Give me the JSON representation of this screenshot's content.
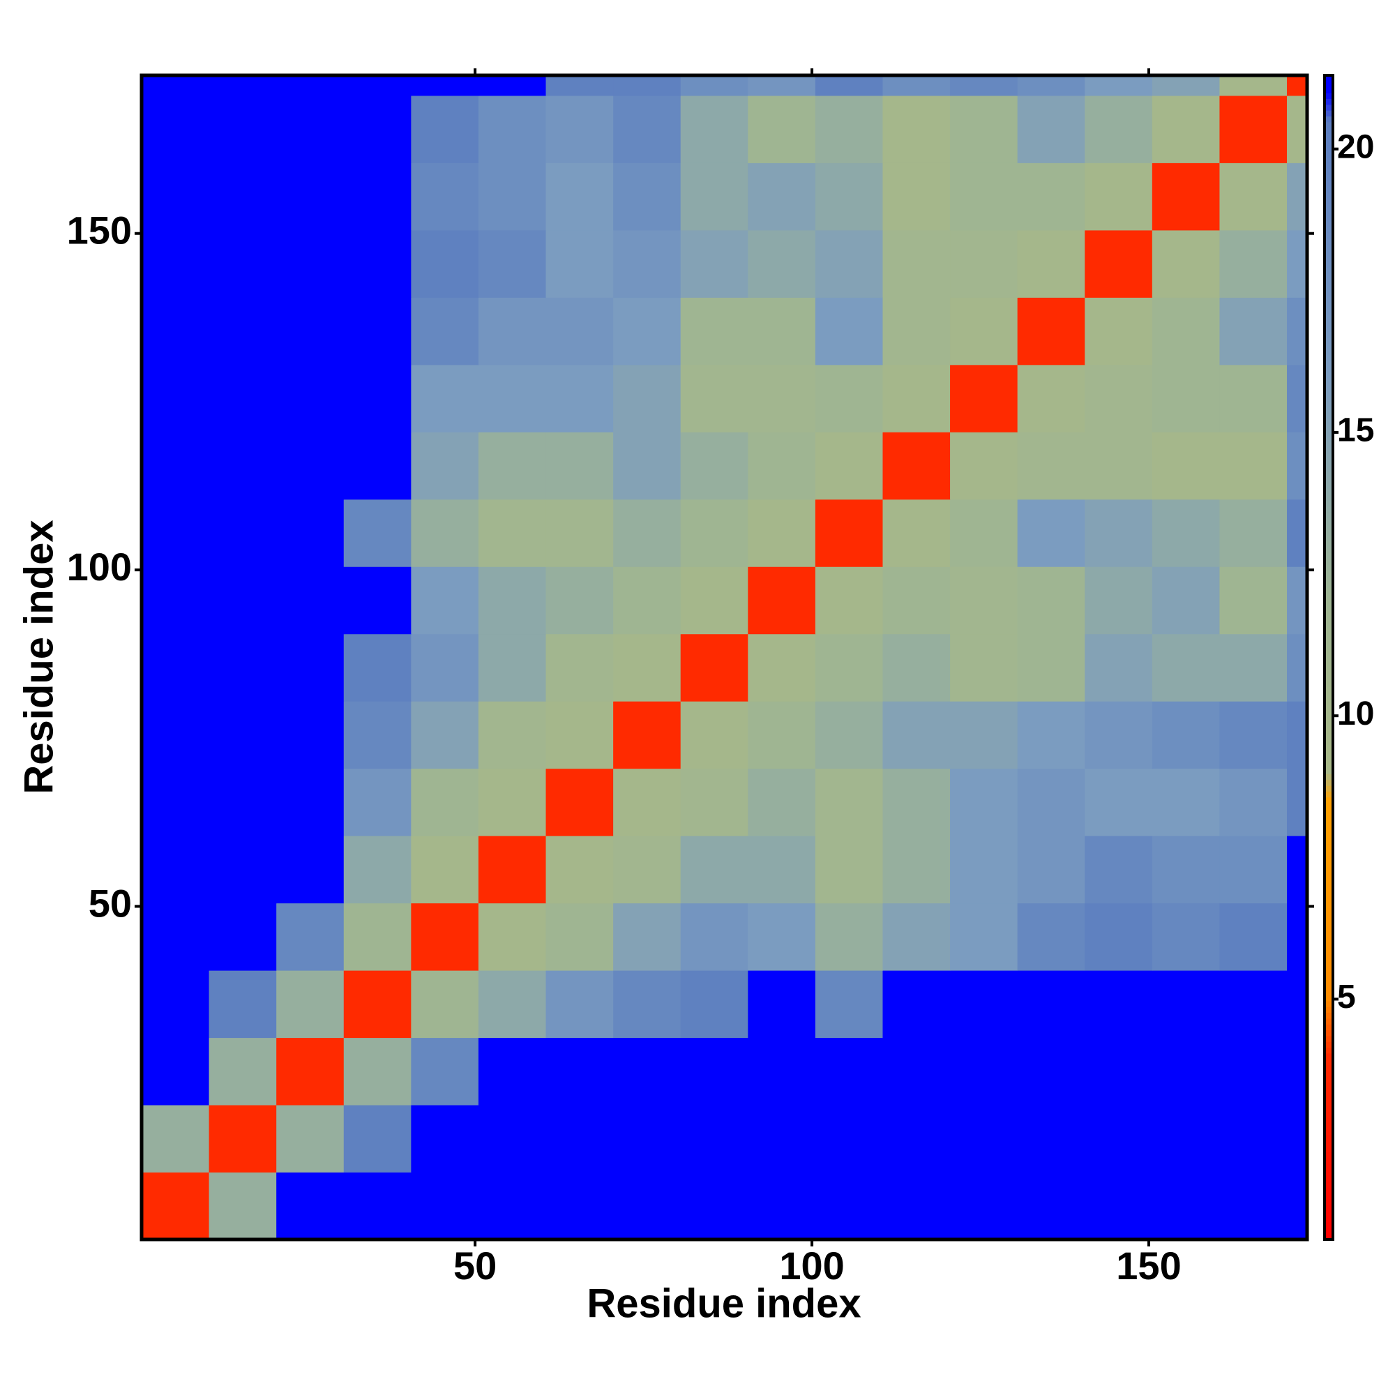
{
  "chart_data": {
    "type": "heatmap",
    "x_label": "Residue index",
    "y_label": "Residue index",
    "xlim": [
      0.5,
      173.5
    ],
    "ylim": [
      0.5,
      173.5
    ],
    "xticks": [
      50,
      100,
      150
    ],
    "yticks": [
      50,
      100,
      150
    ],
    "xbins": [
      0.5,
      10.5,
      20.5,
      30.5,
      40.5,
      50.5,
      60.5,
      70.5,
      80.5,
      90.5,
      100.5,
      110.5,
      120.5,
      130.5,
      140.5,
      150.5,
      160.5,
      170.5,
      173.5
    ],
    "ybins": [
      0.5,
      10.5,
      20.5,
      30.5,
      40.5,
      50.5,
      60.5,
      70.5,
      80.5,
      90.5,
      100.5,
      110.5,
      120.5,
      130.5,
      140.5,
      150.5,
      160.5,
      170.5,
      173.5
    ],
    "z": [
      [
        4,
        13,
        21,
        21,
        21,
        21,
        21,
        21,
        21,
        21,
        21,
        21,
        21,
        21,
        21,
        21,
        21,
        21
      ],
      [
        13,
        4,
        13,
        20,
        21,
        21,
        21,
        21,
        21,
        21,
        21,
        21,
        21,
        21,
        21,
        21,
        21,
        21
      ],
      [
        21,
        13,
        4,
        13,
        19,
        21,
        21,
        21,
        21,
        21,
        21,
        21,
        21,
        21,
        21,
        21,
        21,
        21
      ],
      [
        21,
        20,
        13,
        4,
        12,
        14,
        17,
        19,
        20,
        21,
        19,
        21,
        21,
        21,
        21,
        21,
        21,
        21
      ],
      [
        21,
        21,
        19,
        12,
        4,
        10,
        12,
        15,
        17,
        16,
        13,
        15,
        16,
        19,
        20,
        19,
        20,
        21
      ],
      [
        21,
        21,
        21,
        14,
        10,
        4,
        10,
        11,
        14,
        14,
        11,
        13,
        16,
        17,
        19,
        18,
        18,
        21
      ],
      [
        21,
        21,
        21,
        17,
        12,
        10,
        4,
        10,
        11,
        13,
        11,
        13,
        16,
        17,
        16,
        16,
        17,
        20
      ],
      [
        21,
        21,
        21,
        19,
        15,
        11,
        10,
        4,
        10,
        12,
        13,
        15,
        15,
        16,
        17,
        18,
        19,
        20
      ],
      [
        21,
        21,
        21,
        20,
        17,
        14,
        11,
        10,
        4,
        10,
        12,
        13,
        11,
        12,
        15,
        14,
        14,
        18
      ],
      [
        21,
        21,
        21,
        21,
        16,
        14,
        13,
        12,
        10,
        4,
        10,
        12,
        11,
        12,
        14,
        15,
        12,
        17
      ],
      [
        21,
        21,
        21,
        19,
        13,
        11,
        11,
        13,
        12,
        10,
        4,
        10,
        12,
        16,
        15,
        14,
        13,
        20
      ],
      [
        21,
        21,
        21,
        21,
        15,
        13,
        13,
        15,
        13,
        12,
        10,
        4,
        10,
        11,
        11,
        10,
        10,
        18
      ],
      [
        21,
        21,
        21,
        21,
        16,
        16,
        16,
        15,
        11,
        11,
        12,
        10,
        4,
        10,
        11,
        12,
        12,
        19
      ],
      [
        21,
        21,
        21,
        21,
        19,
        17,
        17,
        16,
        12,
        12,
        16,
        11,
        10,
        4,
        10,
        12,
        15,
        18
      ],
      [
        21,
        21,
        21,
        21,
        20,
        19,
        16,
        17,
        15,
        14,
        15,
        11,
        11,
        10,
        4,
        10,
        13,
        16
      ],
      [
        21,
        21,
        21,
        21,
        19,
        18,
        16,
        18,
        14,
        15,
        14,
        10,
        12,
        12,
        10,
        4,
        10,
        15
      ],
      [
        21,
        21,
        21,
        21,
        20,
        18,
        17,
        19,
        14,
        12,
        13,
        10,
        12,
        15,
        13,
        10,
        4,
        10
      ],
      [
        21,
        21,
        21,
        21,
        21,
        21,
        20,
        20,
        18,
        17,
        20,
        18,
        19,
        18,
        16,
        15,
        10,
        4
      ]
    ],
    "zlim": [
      0.76,
      21.3
    ],
    "zticks": [
      5,
      10,
      15,
      20
    ],
    "colorscale": [
      [
        0.76,
        "#ff0000"
      ],
      [
        4,
        "#ff2a00"
      ],
      [
        5,
        "#ff8c00"
      ],
      [
        8.5,
        "#ffa000"
      ],
      [
        9,
        "#a8b888"
      ],
      [
        12,
        "#9fb592"
      ],
      [
        16,
        "#7b9cc0"
      ],
      [
        20.5,
        "#5c7ec0"
      ],
      [
        21,
        "#0000ff"
      ]
    ]
  }
}
